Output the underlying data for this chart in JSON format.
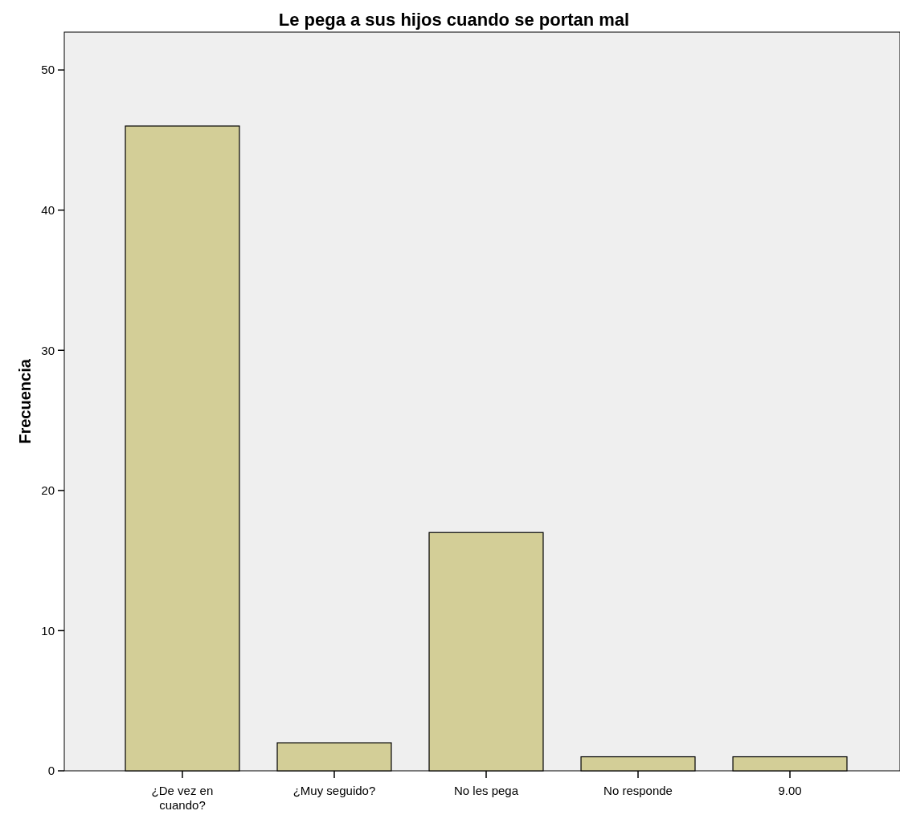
{
  "chart_data": {
    "type": "bar",
    "title": "Le pega a sus hijos cuando se portan mal",
    "ylabel": "Frecuencia",
    "categories": [
      "¿De vez en cuando?",
      "¿Muy seguido?",
      "No les pega",
      "No responde",
      "9.00"
    ],
    "values": [
      46,
      2,
      17,
      1,
      1
    ],
    "color": "#d3ce97",
    "ylim": [
      0,
      52.7
    ],
    "yticks": [
      0,
      10,
      20,
      30,
      40,
      50
    ],
    "grid": false
  }
}
